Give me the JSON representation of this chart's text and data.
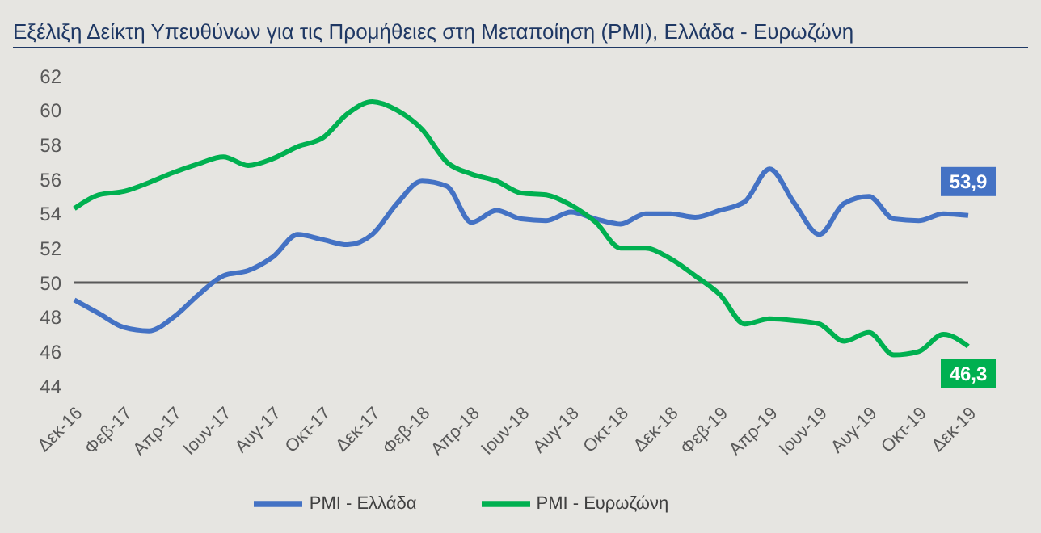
{
  "chart_data": {
    "type": "line",
    "title": "Εξέλιξη Δείκτη Υπευθύνων για τις Προμήθειες στη Μεταποίηση (PMI), Ελλάδα - Ευρωζώνη",
    "categories": [
      "Δεκ-16",
      null,
      "Φεβ-17",
      null,
      "Απρ-17",
      null,
      "Ιουν-17",
      null,
      "Αυγ-17",
      null,
      "Οκτ-17",
      null,
      "Δεκ-17",
      null,
      "Φεβ-18",
      null,
      "Απρ-18",
      null,
      "Ιουν-18",
      null,
      "Αυγ-18",
      null,
      "Οκτ-18",
      null,
      "Δεκ-18",
      null,
      "Φεβ-19",
      null,
      "Απρ-19",
      null,
      "Ιουν-19",
      null,
      "Αυγ-19",
      null,
      "Οκτ-19",
      null,
      "Δεκ-19"
    ],
    "series": [
      {
        "name": "PMI - Ελλάδα",
        "color": "#4472c4",
        "values": [
          49.0,
          48.2,
          47.4,
          47.2,
          48.0,
          49.3,
          50.4,
          50.7,
          51.5,
          52.8,
          52.5,
          52.2,
          52.8,
          54.6,
          55.9,
          55.6,
          53.5,
          54.2,
          53.7,
          53.6,
          54.1,
          53.7,
          53.4,
          54.0,
          54.0,
          53.8,
          54.2,
          54.7,
          56.6,
          54.6,
          52.8,
          54.6,
          55.0,
          53.7,
          53.6,
          54.0,
          53.9
        ],
        "value_labels": [
          null,
          null,
          null,
          null,
          null,
          null,
          null,
          null,
          null,
          null,
          null,
          null,
          null,
          null,
          null,
          null,
          null,
          null,
          null,
          null,
          null,
          null,
          null,
          null,
          null,
          null,
          null,
          null,
          null,
          null,
          null,
          null,
          null,
          null,
          null,
          null,
          "53,9"
        ]
      },
      {
        "name": "PMI - Ευρωζώνη",
        "color": "#00b050",
        "values": [
          54.3,
          55.1,
          55.3,
          55.8,
          56.4,
          56.9,
          57.3,
          56.8,
          57.2,
          57.9,
          58.4,
          59.8,
          60.5,
          60.0,
          58.9,
          57.0,
          56.3,
          55.9,
          55.2,
          55.1,
          54.5,
          53.5,
          52.0,
          52.0,
          51.4,
          50.4,
          49.3,
          47.6,
          47.9,
          47.8,
          47.6,
          46.6,
          47.1,
          45.8,
          46.0,
          47.0,
          46.3
        ],
        "value_labels": [
          null,
          null,
          null,
          null,
          null,
          null,
          null,
          null,
          null,
          null,
          null,
          null,
          null,
          null,
          null,
          null,
          null,
          null,
          null,
          null,
          null,
          null,
          null,
          null,
          null,
          null,
          null,
          null,
          null,
          null,
          null,
          null,
          null,
          null,
          null,
          null,
          "46,3"
        ]
      }
    ],
    "ylim": [
      44,
      62
    ],
    "yticks": [
      44,
      46,
      48,
      50,
      52,
      54,
      56,
      58,
      60,
      62
    ],
    "ref_lines": [
      {
        "axis": "y",
        "value": 50,
        "color": "#595959"
      }
    ],
    "grid": false,
    "legend": "bottom",
    "marker": "none",
    "line_style": "solid"
  }
}
